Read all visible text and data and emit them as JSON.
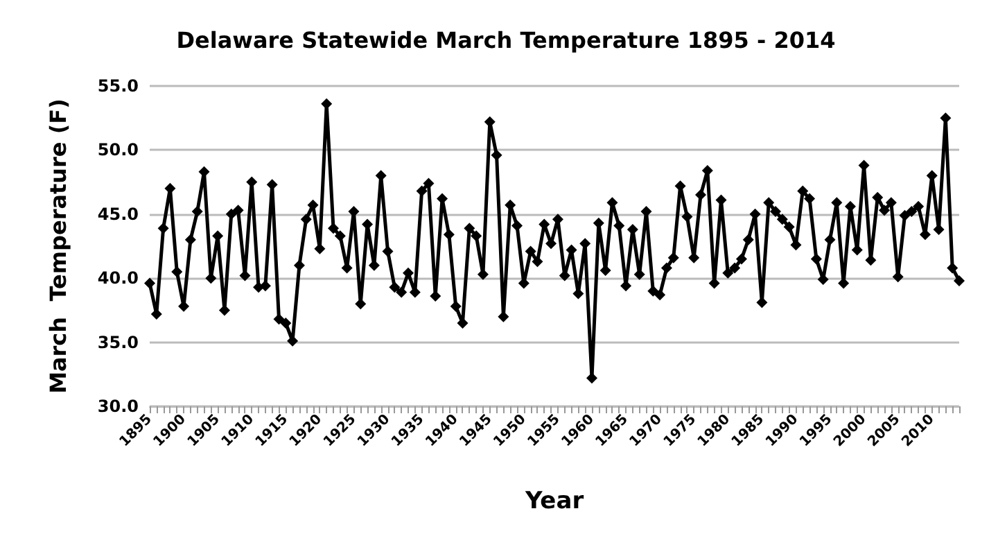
{
  "chart_data": {
    "type": "line",
    "title": "Delaware Statewide March Temperature 1895 - 2014",
    "xlabel": "Year",
    "ylabel": "March  Temperature (F)",
    "categories": [
      "1895",
      null,
      null,
      null,
      null,
      "1900",
      null,
      null,
      null,
      null,
      "1905",
      null,
      null,
      null,
      null,
      "1910",
      null,
      null,
      null,
      null,
      "1915",
      null,
      null,
      null,
      null,
      "1920",
      null,
      null,
      null,
      null,
      "1925",
      null,
      null,
      null,
      null,
      "1930",
      null,
      null,
      null,
      null,
      "1935",
      null,
      null,
      null,
      null,
      "1940",
      null,
      null,
      null,
      null,
      "1945",
      null,
      null,
      null,
      null,
      "1950",
      null,
      null,
      null,
      null,
      "1955",
      null,
      null,
      null,
      null,
      "1960",
      null,
      null,
      null,
      null,
      "1965",
      null,
      null,
      null,
      null,
      "1970",
      null,
      null,
      null,
      null,
      "1975",
      null,
      null,
      null,
      null,
      "1980",
      null,
      null,
      null,
      null,
      "1985",
      null,
      null,
      null,
      null,
      "1990",
      null,
      null,
      null,
      null,
      "1995",
      null,
      null,
      null,
      null,
      "2000",
      null,
      null,
      null,
      null,
      "2005",
      null,
      null,
      null,
      null,
      "2010",
      null,
      null,
      null,
      null
    ],
    "series": [
      {
        "color": "#000000",
        "values": [
          39.6,
          37.2,
          43.9,
          47.0,
          40.5,
          37.8,
          43.0,
          45.2,
          48.3,
          40.0,
          43.3,
          37.5,
          45.0,
          45.3,
          40.2,
          47.5,
          39.3,
          39.4,
          47.3,
          36.8,
          36.5,
          35.1,
          41.0,
          44.6,
          45.7,
          42.3,
          53.6,
          43.9,
          43.3,
          40.8,
          45.2,
          38.0,
          44.2,
          41.0,
          48.0,
          42.1,
          39.3,
          38.9,
          40.4,
          38.9,
          46.8,
          47.4,
          38.6,
          46.2,
          43.4,
          37.8,
          36.5,
          43.9,
          43.3,
          40.3,
          52.2,
          49.6,
          37.0,
          45.7,
          44.1,
          39.6,
          42.1,
          41.3,
          44.2,
          42.7,
          44.6,
          40.2,
          42.2,
          38.8,
          42.7,
          32.2,
          44.3,
          40.6,
          45.9,
          44.1,
          39.4,
          43.8,
          40.3,
          45.2,
          39.0,
          38.7,
          40.8,
          41.6,
          47.2,
          44.8,
          41.6,
          46.5,
          48.4,
          39.6,
          46.1,
          40.4,
          40.8,
          41.5,
          43.0,
          45.0,
          38.1,
          45.9,
          45.2,
          44.6,
          44.0,
          42.6,
          46.8,
          46.2,
          41.5,
          39.9,
          43.0,
          45.9,
          39.6,
          45.6,
          42.2,
          48.8,
          41.4,
          46.3,
          45.3,
          45.9,
          40.1,
          44.9,
          45.2,
          45.6,
          43.4,
          48.0,
          43.8,
          52.5,
          40.8,
          39.8
        ]
      }
    ],
    "ylim": [
      30,
      55
    ],
    "yticks": [
      {
        "value": 30,
        "label": "30.0"
      },
      {
        "value": 35,
        "label": "35.0"
      },
      {
        "value": 40,
        "label": "40.0"
      },
      {
        "value": 45,
        "label": "45.0"
      },
      {
        "value": 50,
        "label": "50.0"
      },
      {
        "value": 55,
        "label": "55.0"
      }
    ],
    "grid": "y",
    "marker": "diamond",
    "line_style": "solid"
  }
}
